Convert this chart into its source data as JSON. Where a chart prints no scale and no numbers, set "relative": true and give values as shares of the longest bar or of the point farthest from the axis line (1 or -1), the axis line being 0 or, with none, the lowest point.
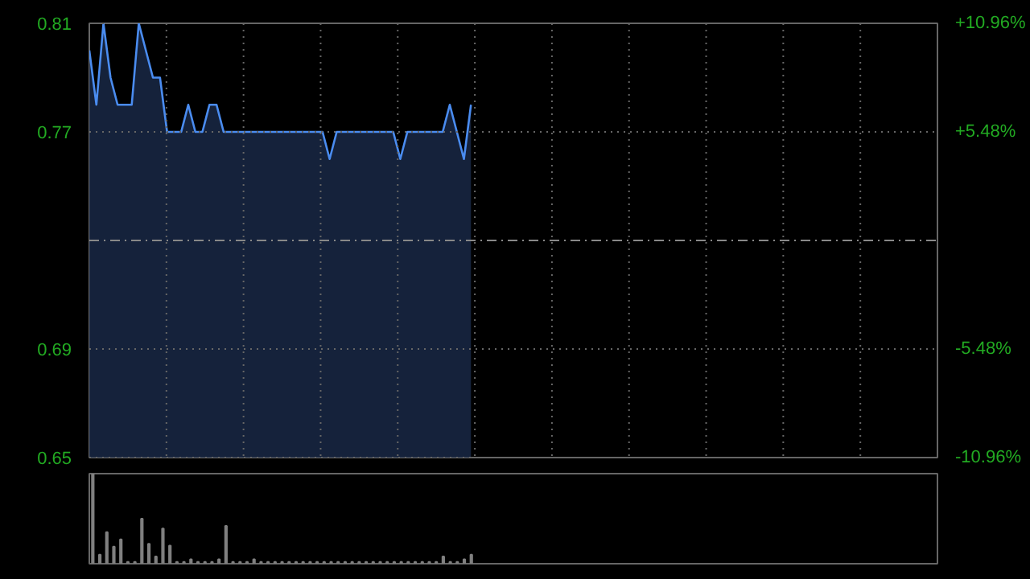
{
  "chart_data": [
    {
      "type": "area",
      "categories": [
        null,
        null,
        null,
        null,
        null,
        null,
        null,
        null,
        null,
        null,
        null,
        null,
        null,
        null,
        null,
        null,
        null,
        null,
        null,
        null,
        null,
        null,
        null,
        null,
        null,
        null,
        null,
        null,
        null,
        null,
        null,
        null,
        null,
        null,
        null,
        null,
        null,
        null,
        null,
        null,
        null,
        null,
        null,
        null,
        null,
        null,
        null,
        null,
        null,
        null,
        null,
        null,
        null,
        null,
        null,
        null,
        null,
        null,
        null,
        null,
        null,
        null,
        null,
        null,
        null,
        null,
        null,
        null,
        null,
        null,
        null,
        null,
        null,
        null,
        null,
        null,
        null,
        null,
        null,
        null,
        null,
        null,
        null,
        null,
        null,
        null,
        null,
        null,
        null,
        null,
        null,
        null,
        null,
        null,
        null,
        null,
        null,
        null,
        null,
        null,
        null,
        null,
        null,
        null,
        null,
        null,
        null,
        null,
        null,
        null,
        null,
        null,
        null,
        null,
        null,
        null,
        null,
        null,
        null,
        null,
        null
      ],
      "series": [
        {
          "color": "#4a8cf0",
          "values": [
            0.8,
            0.78,
            0.81,
            0.79,
            0.78,
            0.78,
            0.78,
            0.81,
            0.8,
            0.79,
            0.79,
            0.77,
            0.77,
            0.77,
            0.78,
            0.77,
            0.77,
            0.78,
            0.78,
            0.77,
            0.77,
            0.77,
            0.77,
            0.77,
            0.77,
            0.77,
            0.77,
            0.77,
            0.77,
            0.77,
            0.77,
            0.77,
            0.77,
            0.77,
            0.76,
            0.77,
            0.77,
            0.77,
            0.77,
            0.77,
            0.77,
            0.77,
            0.77,
            0.77,
            0.76,
            0.77,
            0.77,
            0.77,
            0.77,
            0.77,
            0.77,
            0.78,
            0.77,
            0.76,
            0.78,
            null,
            null,
            null,
            null,
            null,
            null,
            null,
            null,
            null,
            null,
            null,
            null,
            null,
            null,
            null,
            null,
            null,
            null,
            null,
            null,
            null,
            null,
            null,
            null,
            null,
            null,
            null,
            null,
            null,
            null,
            null,
            null,
            null,
            null,
            null,
            null,
            null,
            null,
            null,
            null,
            null,
            null,
            null,
            null,
            null,
            null,
            null,
            null,
            null,
            null,
            null,
            null,
            null,
            null,
            null,
            null,
            null,
            null,
            null,
            null,
            null,
            null,
            null,
            null,
            null,
            null
          ]
        }
      ],
      "ylim": [
        0.65,
        0.81
      ],
      "yticks": [
        0.81,
        0.77,
        0.69,
        0.65
      ],
      "y2lim": [
        -10.96,
        10.96
      ],
      "y2ticks": [
        {
          "value": 10.96,
          "label": "+10.96%"
        },
        {
          "value": 5.48,
          "label": "+5.48%"
        },
        {
          "value": -5.48,
          "label": "-5.48%"
        },
        {
          "value": -10.96,
          "label": "-10.96%"
        }
      ],
      "ref_lines": [
        {
          "axis": "y",
          "value": 0.73,
          "label": null,
          "line_style": "dashed",
          "color": "#888888"
        }
      ],
      "grid": true
    },
    {
      "type": "bar",
      "relative": true,
      "categories": [
        null,
        null,
        null,
        null,
        null,
        null,
        null,
        null,
        null,
        null,
        null,
        null,
        null,
        null,
        null,
        null,
        null,
        null,
        null,
        null,
        null,
        null,
        null,
        null,
        null,
        null,
        null,
        null,
        null,
        null,
        null,
        null,
        null,
        null,
        null,
        null,
        null,
        null,
        null,
        null,
        null,
        null,
        null,
        null,
        null,
        null,
        null,
        null,
        null,
        null,
        null,
        null,
        null,
        null,
        null,
        null,
        null,
        null,
        null,
        null,
        null,
        null,
        null,
        null,
        null,
        null,
        null,
        null,
        null,
        null,
        null,
        null,
        null,
        null,
        null,
        null,
        null,
        null,
        null,
        null,
        null,
        null,
        null,
        null,
        null,
        null,
        null,
        null,
        null,
        null,
        null,
        null,
        null,
        null,
        null,
        null,
        null,
        null,
        null,
        null,
        null,
        null,
        null,
        null,
        null,
        null,
        null,
        null,
        null,
        null,
        null,
        null,
        null,
        null,
        null,
        null,
        null,
        null,
        null,
        null,
        null
      ],
      "series": [
        {
          "color": "#808080",
          "values": [
            1.0,
            0.1,
            0.35,
            0.19,
            0.27,
            0.02,
            0.02,
            0.5,
            0.22,
            0.08,
            0.39,
            0.2,
            0.02,
            0.02,
            0.05,
            0.02,
            0.02,
            0.02,
            0.05,
            0.42,
            0.02,
            0.02,
            0.02,
            0.05,
            0.02,
            0.02,
            0.02,
            0.02,
            0.02,
            0.02,
            0.02,
            0.02,
            0.02,
            0.02,
            0.02,
            0.02,
            0.02,
            0.02,
            0.02,
            0.02,
            0.02,
            0.02,
            0.02,
            0.02,
            0.02,
            0.02,
            0.02,
            0.02,
            0.02,
            0.02,
            0.08,
            0.02,
            0.02,
            0.05,
            0.1,
            null,
            null,
            null,
            null,
            null,
            null,
            null,
            null,
            null,
            null,
            null,
            null,
            null,
            null,
            null,
            null,
            null,
            null,
            null,
            null,
            null,
            null,
            null,
            null,
            null,
            null,
            null,
            null,
            null,
            null,
            null,
            null,
            null,
            null,
            null,
            null,
            null,
            null,
            null,
            null,
            null,
            null,
            null,
            null,
            null,
            null,
            null,
            null,
            null,
            null,
            null,
            null,
            null,
            null,
            null,
            null,
            null,
            null,
            null,
            null,
            null,
            null,
            null,
            null,
            null,
            null
          ]
        }
      ],
      "grid": false
    }
  ]
}
